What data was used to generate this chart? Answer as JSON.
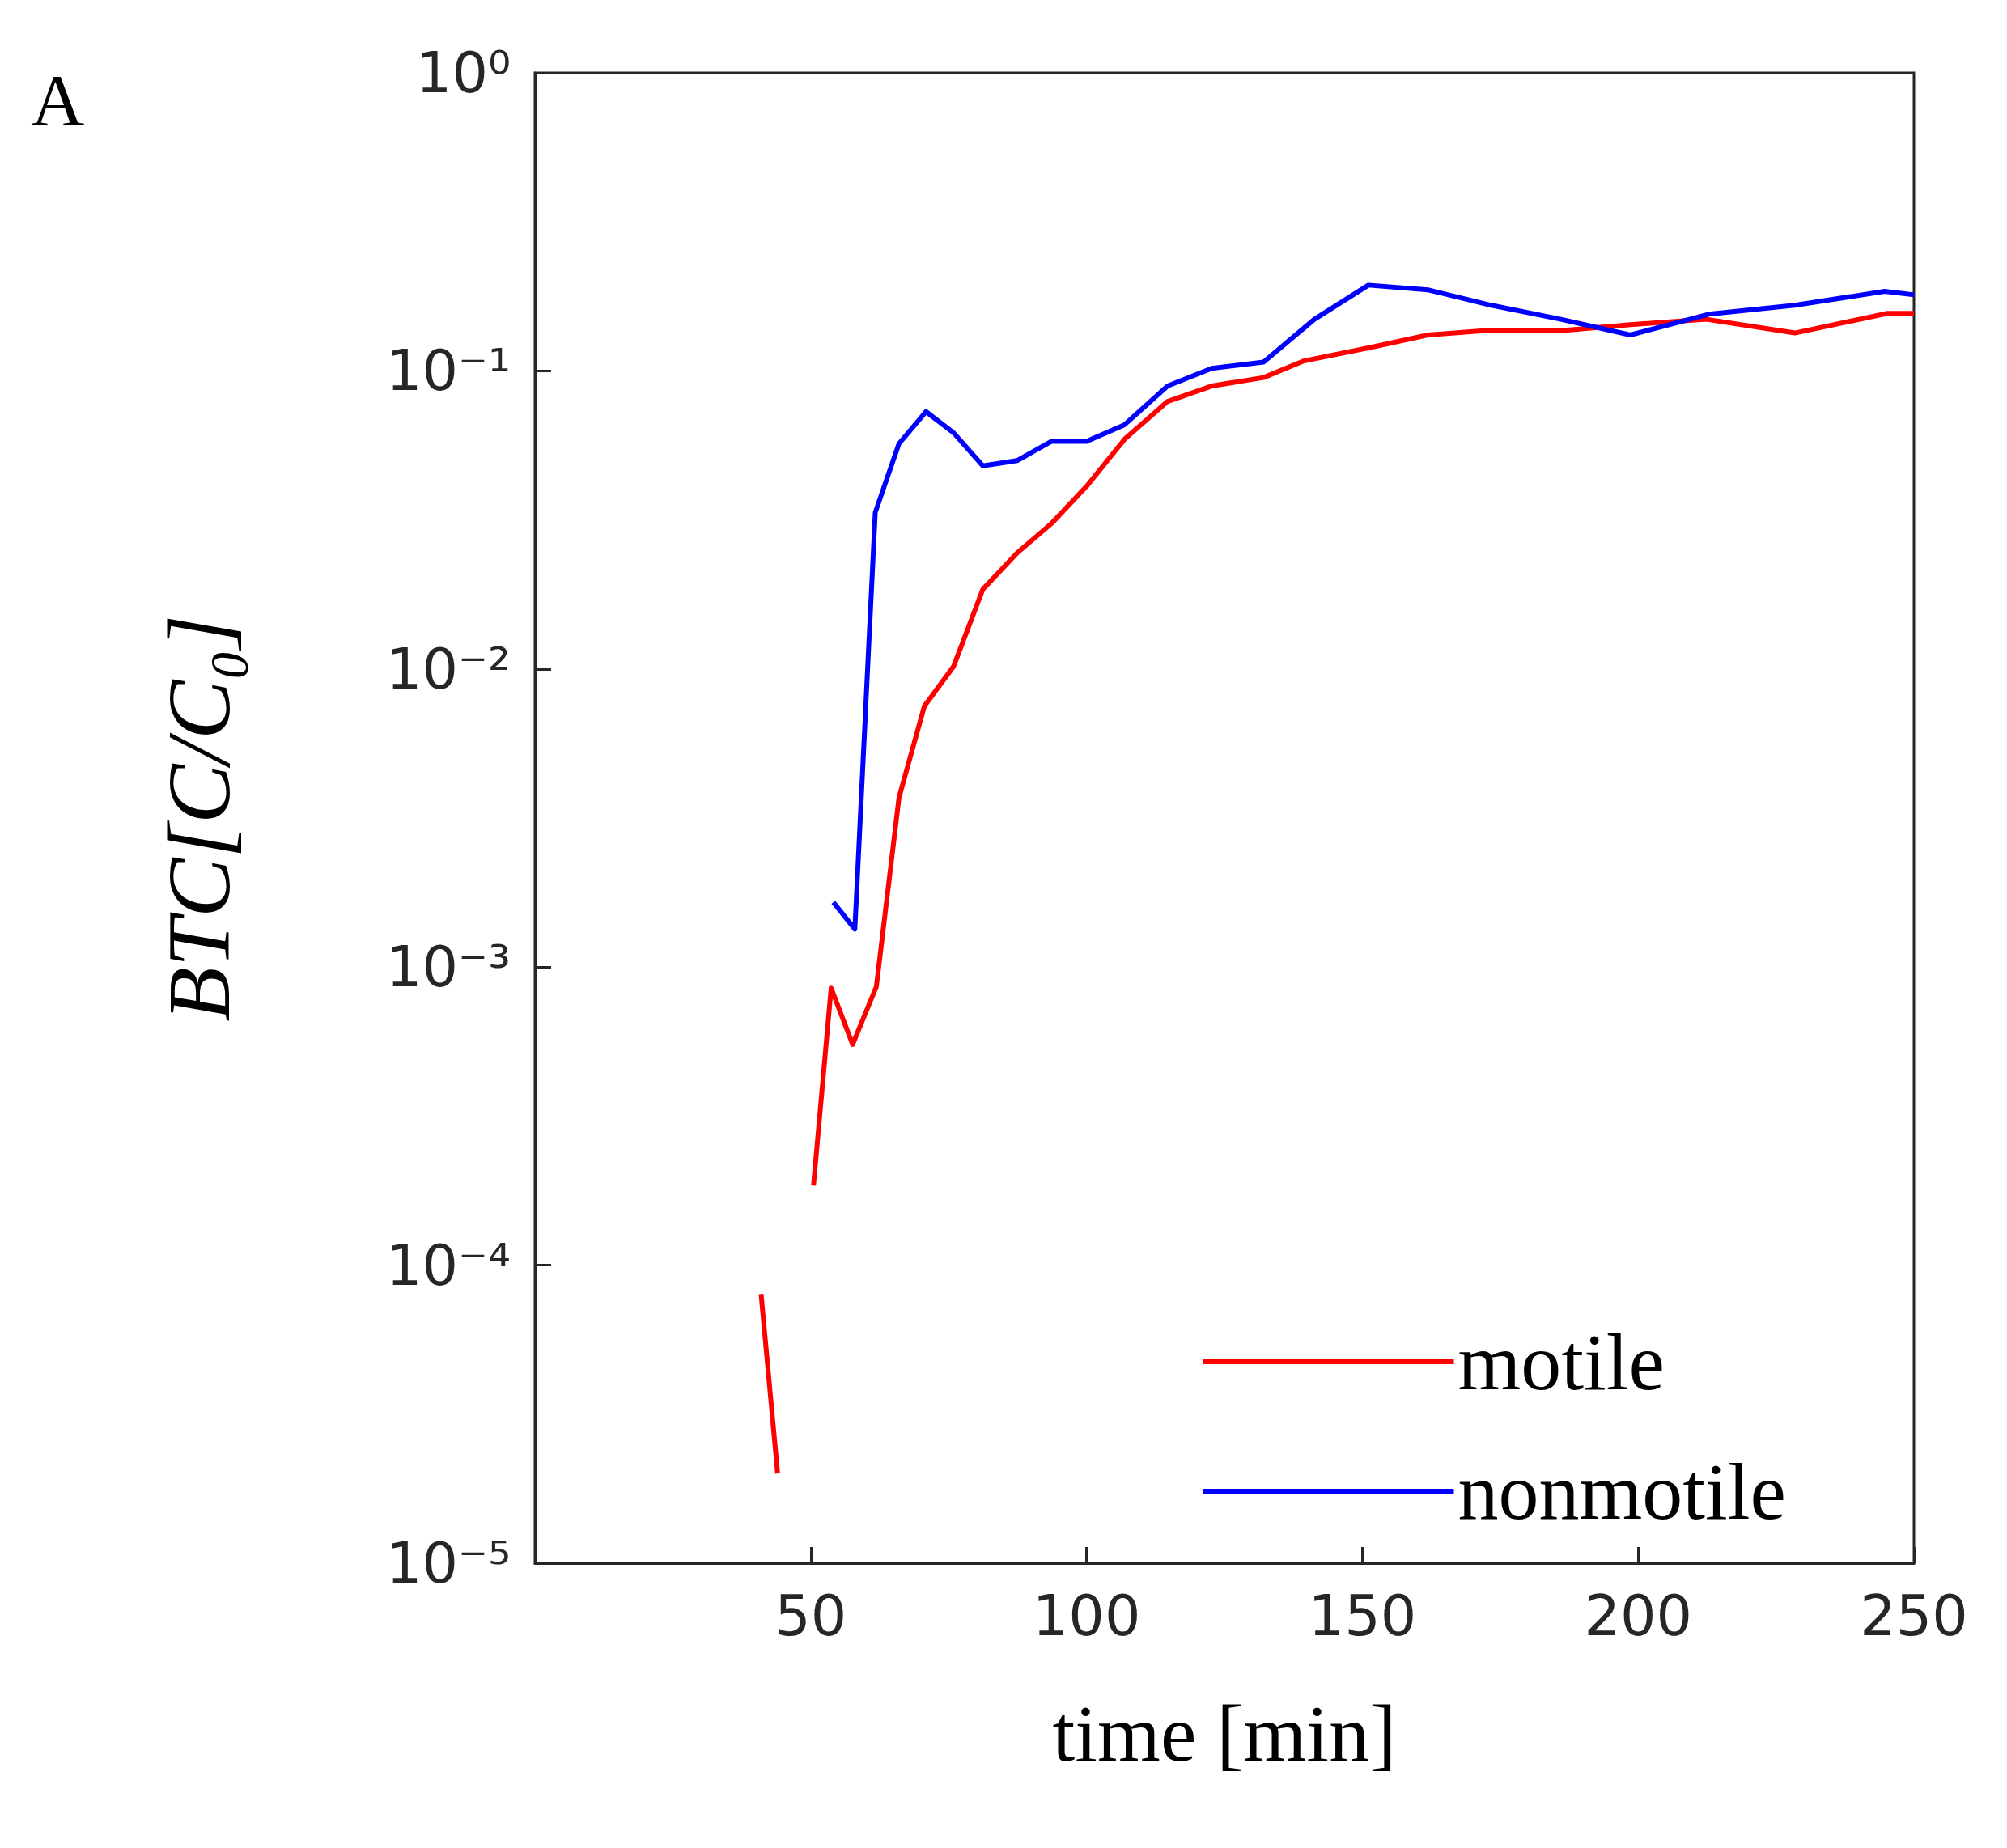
{
  "chart_data": {
    "type": "line",
    "xlabel": "time [min]",
    "ylabel": "BTC[C/C₀]",
    "annotations": [
      "A"
    ],
    "log": "y",
    "grid": false,
    "legend": "bottom right",
    "line_style": "solid",
    "marker": "none",
    "xlim": [
      0,
      250
    ],
    "xticks": [
      50,
      100,
      150,
      200,
      250
    ],
    "ylim": [
      1e-05,
      1
    ],
    "yticks": [
      {
        "value": 1e-05,
        "label": "10⁻⁵"
      },
      {
        "value": 0.0001,
        "label": "10⁻⁴"
      },
      {
        "value": 0.001,
        "label": "10⁻³"
      },
      {
        "value": 0.01,
        "label": "10⁻²"
      },
      {
        "value": 0.1,
        "label": "10⁻¹"
      },
      {
        "value": 1,
        "label": "10⁰"
      }
    ],
    "series": [
      {
        "name": "motile",
        "color": "#ff0000",
        "x": [
          41,
          44,
          47,
          50.5,
          53.7,
          57.6,
          61.9,
          66,
          70.6,
          75.9,
          81.2,
          87.4,
          93.6,
          100,
          106.9,
          114.7,
          122.7,
          132.1,
          139.4,
          151.6,
          161.9,
          173.4,
          187.2,
          198.6,
          212.4,
          228.4,
          245.2,
          250
        ],
        "values": [
          8e-05,
          2e-05,
          null,
          0.000185,
          0.00085,
          0.00055,
          0.00086,
          0.0037,
          0.0075,
          0.0102,
          0.0185,
          0.0245,
          0.0307,
          0.041,
          0.059,
          0.079,
          0.089,
          0.095,
          0.108,
          0.12,
          0.132,
          0.137,
          0.137,
          0.143,
          0.149,
          0.134,
          0.156,
          0.156
        ]
      },
      {
        "name": "nonmotile",
        "color": "#0000ff",
        "x": [
          54.1,
          58,
          61.7,
          66,
          70.9,
          75.9,
          81.2,
          87.4,
          93.6,
          100,
          106.9,
          114.7,
          122.7,
          132.1,
          141.3,
          151.1,
          161.9,
          173.4,
          186,
          198.6,
          212.8,
          228.4,
          244.7,
          250
        ],
        "values": [
          0.00165,
          0.00134,
          0.0335,
          0.057,
          0.073,
          0.062,
          0.048,
          0.05,
          0.058,
          0.058,
          0.066,
          0.089,
          0.102,
          0.107,
          0.149,
          0.194,
          0.187,
          0.166,
          0.149,
          0.132,
          0.155,
          0.166,
          0.185,
          0.18
        ]
      }
    ]
  }
}
